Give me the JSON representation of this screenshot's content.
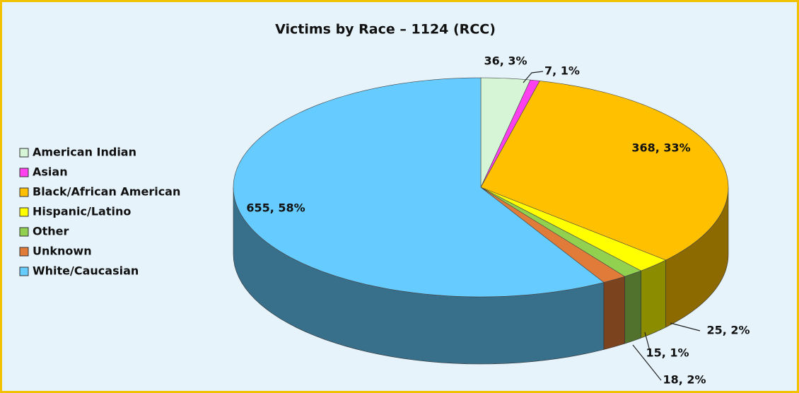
{
  "chart_data": {
    "type": "pie",
    "title": "Victims by Race – 1124 (RCC)",
    "categories": [
      "American Indian",
      "Asian",
      "Black/African American",
      "Hispanic/Latino",
      "Other",
      "Unknown",
      "White/Caucasian"
    ],
    "values": [
      36,
      7,
      368,
      25,
      15,
      18,
      655
    ],
    "value_labels": [
      "36, 3%",
      "7, 1%",
      "368, 33%",
      "25, 2%",
      "15, 1%",
      "18, 2%",
      "655, 58%"
    ],
    "colors": [
      "#d6f5d6",
      "#ff40ee",
      "#ffc000",
      "#ffff00",
      "#92d050",
      "#e07b39",
      "#66ccff"
    ],
    "legend": "left"
  }
}
